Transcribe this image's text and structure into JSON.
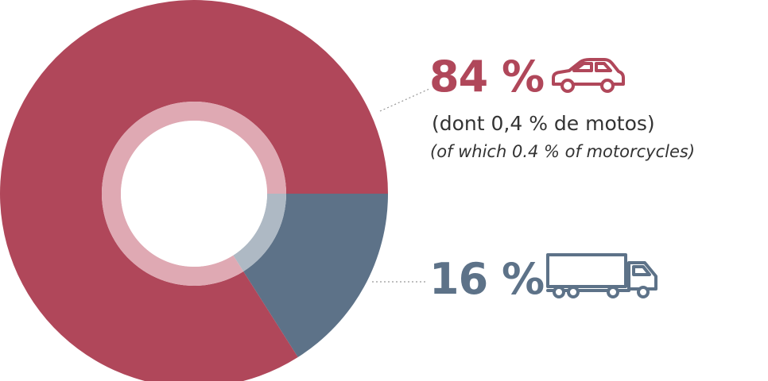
{
  "chart_data": {
    "type": "pie",
    "variant": "donut",
    "slices": [
      {
        "label": "84 %",
        "value": 84,
        "note_fr": "(dont 0,4 % de motos)",
        "note_en": "(of which 0.4 % of motorcycles)",
        "icon": "car-icon",
        "color": "#b0475a",
        "inner_color": "#dfa9b3"
      },
      {
        "label": "16 %",
        "value": 16,
        "icon": "truck-icon",
        "color": "#5d7288",
        "inner_color": "#aeb9c4"
      }
    ],
    "start_direction": "3 o'clock",
    "rotation": "clockwise from 3 o'clock: smaller slice first"
  }
}
